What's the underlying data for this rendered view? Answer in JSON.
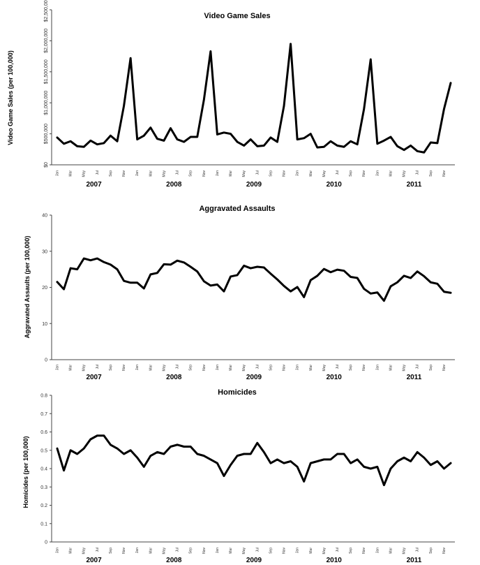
{
  "chart_data": [
    {
      "type": "line",
      "title": "Video Game Sales",
      "ylabel": "Video Game Sales (per 100,000)",
      "xlabel": "",
      "ylim": [
        0,
        2500000
      ],
      "yticks": [
        0,
        500000,
        1000000,
        1500000,
        2000000,
        2500000
      ],
      "ytick_labels": [
        "$0",
        "$500,000",
        "$1,000,000",
        "$1,500,000",
        "$2,000,000",
        "$2,500,000"
      ],
      "month_ticks": [
        "Jan",
        "Mar",
        "May",
        "Jul",
        "Sep",
        "Nov",
        "Jan",
        "Mar",
        "May",
        "Jul",
        "Sep",
        "Nov",
        "Jan",
        "Mar",
        "May",
        "Jul",
        "Sep",
        "Nov",
        "Jan",
        "Mar",
        "May",
        "Jul",
        "Sep",
        "Nov",
        "Jan",
        "Mar",
        "May",
        "Jul",
        "Sep",
        "Nov"
      ],
      "years": [
        "2007",
        "2008",
        "2009",
        "2010",
        "2011"
      ],
      "series": [
        {
          "name": "Video Game Sales",
          "values": [
            440000,
            340000,
            380000,
            300000,
            290000,
            390000,
            330000,
            350000,
            470000,
            380000,
            950000,
            1720000,
            410000,
            470000,
            600000,
            420000,
            390000,
            590000,
            410000,
            370000,
            450000,
            450000,
            1050000,
            1830000,
            490000,
            520000,
            500000,
            370000,
            310000,
            410000,
            300000,
            310000,
            440000,
            370000,
            950000,
            1950000,
            410000,
            430000,
            500000,
            280000,
            290000,
            380000,
            310000,
            290000,
            380000,
            330000,
            900000,
            1700000,
            340000,
            390000,
            450000,
            300000,
            240000,
            310000,
            220000,
            200000,
            360000,
            350000,
            900000,
            1320000
          ]
        }
      ]
    },
    {
      "type": "line",
      "title": "Aggravated Assaults",
      "ylabel": "Aggravated Assaults (per 100,000)",
      "xlabel": "",
      "ylim": [
        0,
        40
      ],
      "yticks": [
        0,
        10,
        20,
        30,
        40
      ],
      "ytick_labels": [
        "0",
        "10",
        "20",
        "30",
        "40"
      ],
      "month_ticks": [
        "Jan",
        "Mar",
        "May",
        "Jul",
        "Sep",
        "Nov",
        "Jan",
        "Mar",
        "May",
        "Jul",
        "Sep",
        "Nov",
        "Jan",
        "Mar",
        "May",
        "Jul",
        "Sep",
        "Nov",
        "Jan",
        "Mar",
        "May",
        "Jul",
        "Sep",
        "Nov",
        "Jan",
        "Mar",
        "May",
        "Jul",
        "Sep",
        "Nov"
      ],
      "years": [
        "2007",
        "2008",
        "2009",
        "2010",
        "2011"
      ],
      "series": [
        {
          "name": "Aggravated Assaults",
          "values": [
            21.5,
            19.5,
            25.3,
            25.0,
            28.0,
            27.5,
            28.0,
            27.0,
            26.3,
            25.0,
            21.8,
            21.3,
            21.3,
            19.7,
            23.6,
            24.0,
            26.4,
            26.3,
            27.4,
            26.9,
            25.7,
            24.4,
            21.7,
            20.5,
            20.8,
            18.9,
            23.0,
            23.4,
            26.0,
            25.3,
            25.7,
            25.5,
            23.8,
            22.2,
            20.4,
            18.9,
            20.1,
            17.3,
            22.0,
            23.2,
            25.1,
            24.2,
            24.9,
            24.6,
            22.9,
            22.6,
            19.6,
            18.3,
            18.6,
            16.3,
            20.3,
            21.4,
            23.2,
            22.6,
            24.4,
            23.1,
            21.4,
            21.0,
            18.8,
            18.5
          ]
        }
      ]
    },
    {
      "type": "line",
      "title": "Homicides",
      "ylabel": "Homicides (per 100,000)",
      "xlabel": "",
      "ylim": [
        0,
        0.8
      ],
      "yticks": [
        0,
        0.1,
        0.2,
        0.3,
        0.4,
        0.5,
        0.6,
        0.7,
        0.8
      ],
      "ytick_labels": [
        "0",
        "0.1",
        "0.2",
        "0.3",
        "0.4",
        "0.5",
        "0.6",
        "0.7",
        "0.8"
      ],
      "month_ticks": [
        "Jan",
        "Mar",
        "May",
        "Jul",
        "Sep",
        "Nov",
        "Jan",
        "Mar",
        "May",
        "Jul",
        "Sep",
        "Nov",
        "Jan",
        "Mar",
        "May",
        "Jul",
        "Sep",
        "Nov",
        "Jan",
        "Mar",
        "May",
        "Jul",
        "Sep",
        "Nov",
        "Jan",
        "Mar",
        "May",
        "Jul",
        "Sep",
        "Nov"
      ],
      "years": [
        "2007",
        "2008",
        "2009",
        "2010",
        "2011"
      ],
      "series": [
        {
          "name": "Homicides",
          "values": [
            0.51,
            0.39,
            0.5,
            0.48,
            0.51,
            0.56,
            0.58,
            0.58,
            0.53,
            0.51,
            0.48,
            0.5,
            0.46,
            0.41,
            0.47,
            0.49,
            0.48,
            0.52,
            0.53,
            0.52,
            0.52,
            0.48,
            0.47,
            0.45,
            0.43,
            0.36,
            0.42,
            0.47,
            0.48,
            0.48,
            0.54,
            0.49,
            0.43,
            0.45,
            0.43,
            0.44,
            0.41,
            0.33,
            0.43,
            0.44,
            0.45,
            0.45,
            0.48,
            0.48,
            0.43,
            0.45,
            0.41,
            0.4,
            0.41,
            0.31,
            0.4,
            0.44,
            0.46,
            0.44,
            0.49,
            0.46,
            0.42,
            0.44,
            0.4,
            0.43
          ]
        }
      ]
    }
  ]
}
